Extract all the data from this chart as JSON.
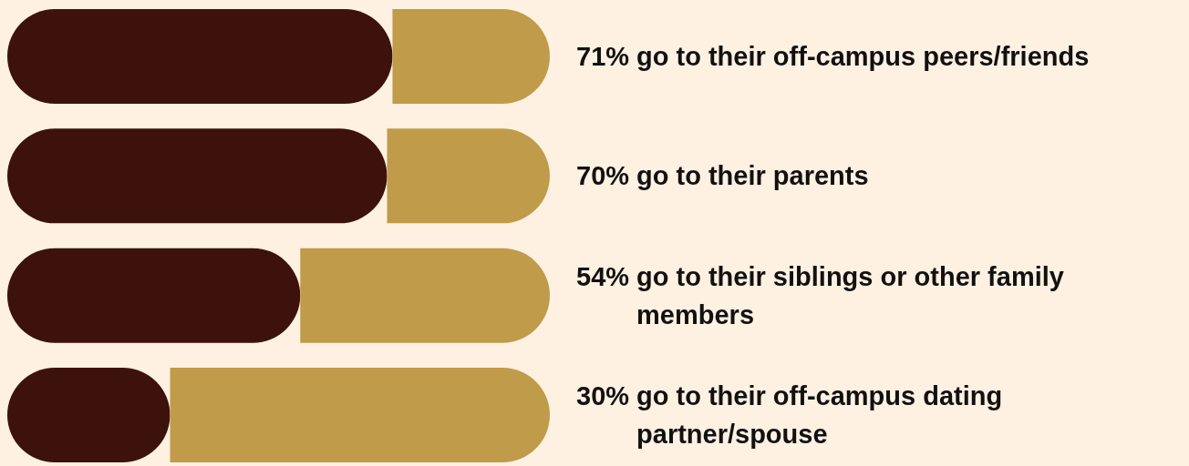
{
  "chart_data": {
    "type": "bar",
    "orientation": "horizontal",
    "stacked": true,
    "tick_labels": false,
    "categories": [
      "go to their off-campus peers/friends",
      "go to their parents",
      "go to their siblings or other family members",
      "go to their off-campus dating partner/spouse"
    ],
    "series": [
      {
        "color": "#3d110c",
        "values": [
          71,
          70,
          54,
          30
        ],
        "value_labels": [
          "71%",
          "70%",
          "54%",
          "30%"
        ]
      },
      {
        "color": "#bf9b4a",
        "values": [
          29,
          30,
          46,
          70
        ]
      }
    ]
  }
}
